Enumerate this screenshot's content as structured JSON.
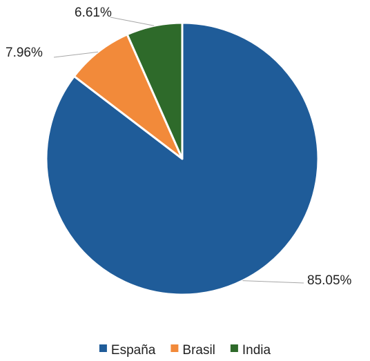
{
  "chart_data": {
    "type": "pie",
    "title": "",
    "series": [
      {
        "name": "España",
        "value": 85.05,
        "label": "85.05%",
        "color": "#1F5C99"
      },
      {
        "name": "Brasil",
        "value": 7.96,
        "label": "7.96%",
        "color": "#F28A3A"
      },
      {
        "name": "India",
        "value": 6.61,
        "label": "6.61%",
        "color": "#2E6A2A"
      }
    ],
    "start_angle": "12 o'clock",
    "direction": "clockwise",
    "legend_position": "bottom"
  }
}
